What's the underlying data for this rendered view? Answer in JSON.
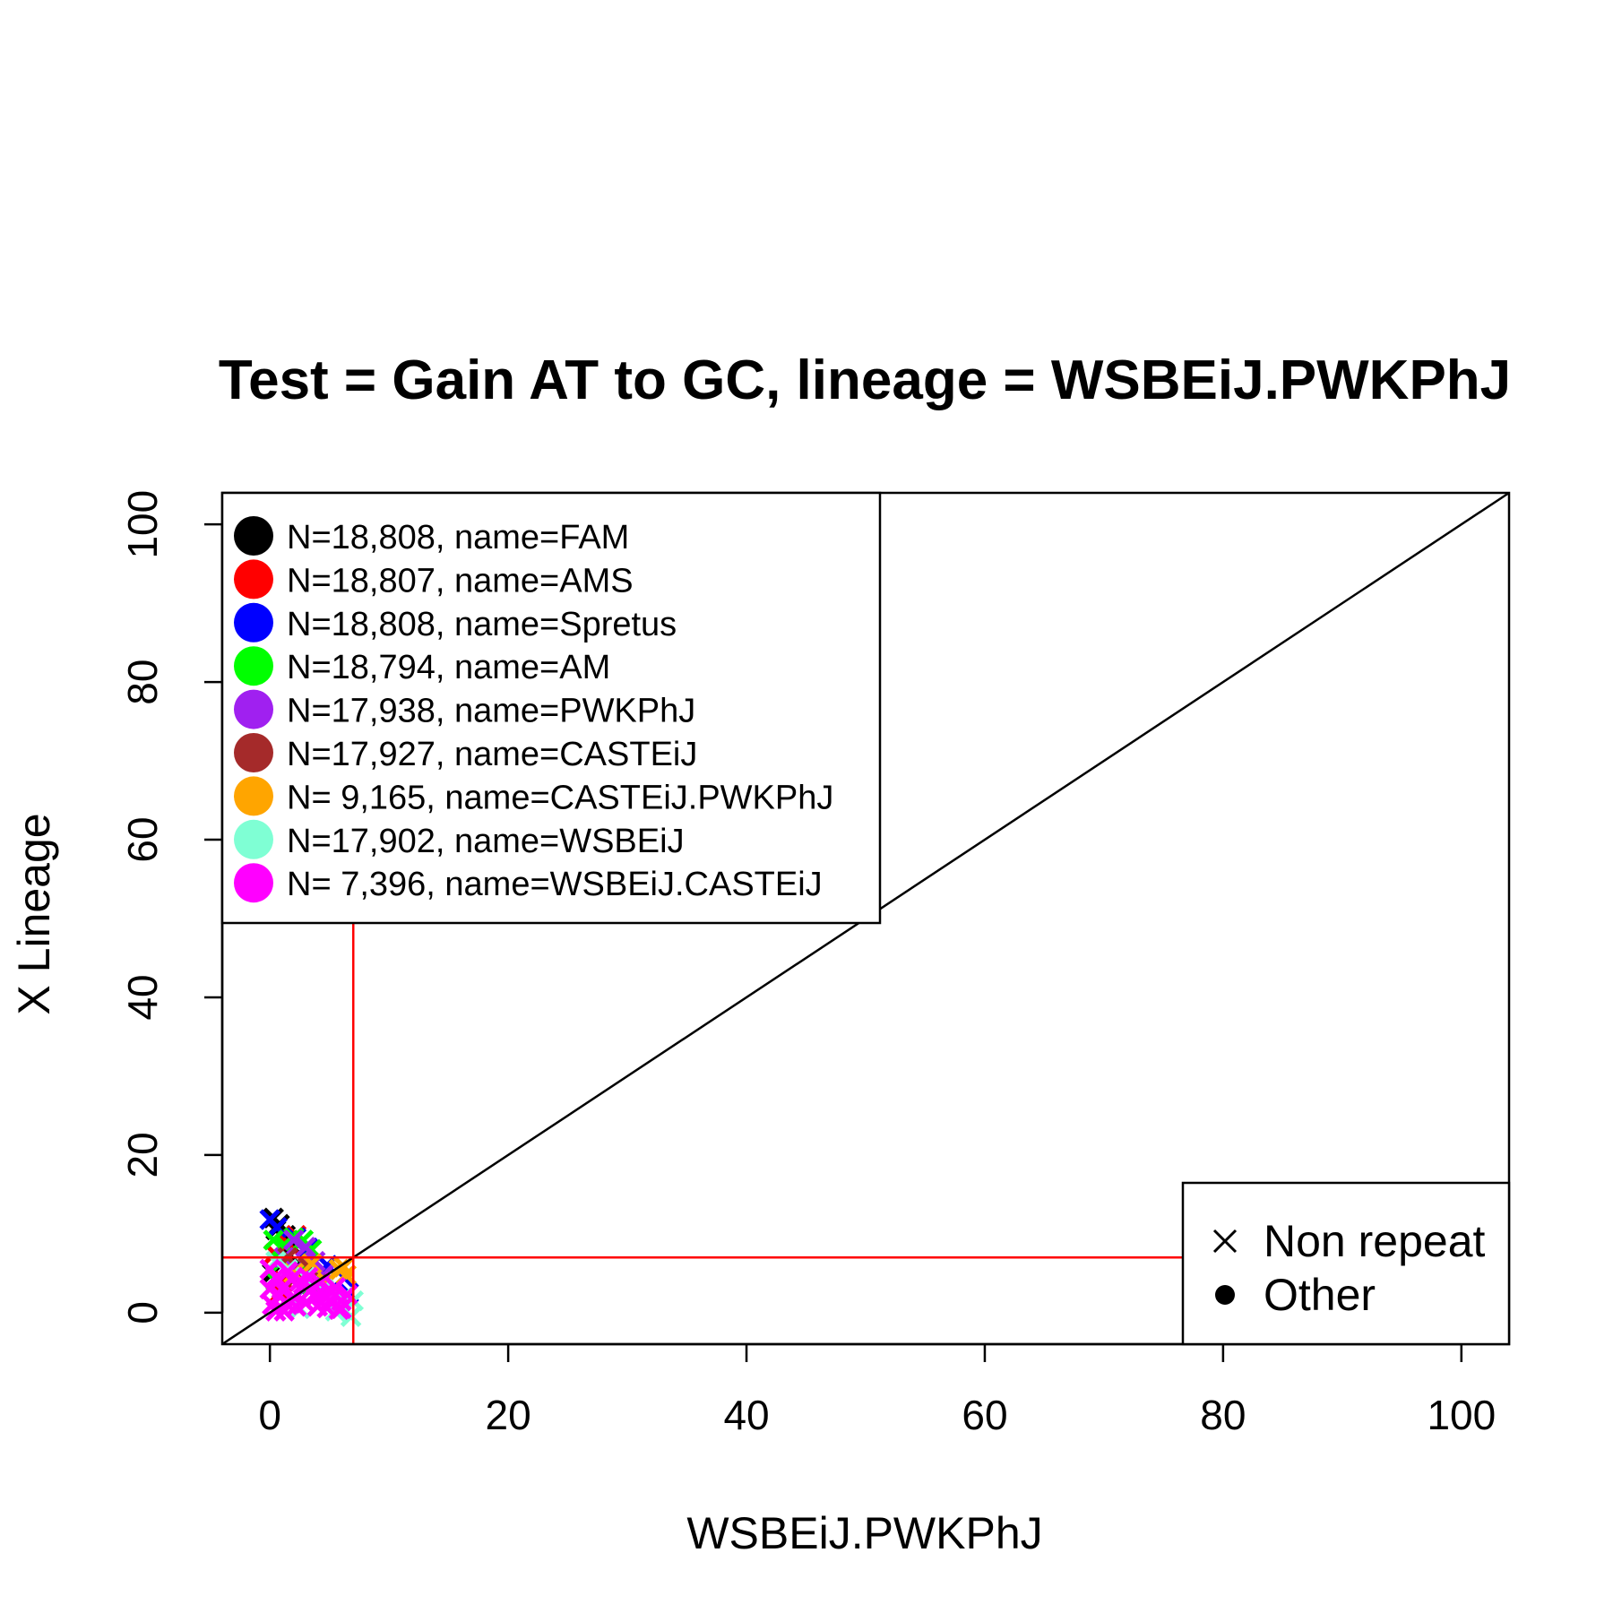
{
  "chart_data": {
    "type": "scatter",
    "title": "Test = Gain AT to GC, lineage = WSBEiJ.PWKPhJ",
    "xlabel": "WSBEiJ.PWKPhJ",
    "ylabel": "X Lineage",
    "xlim": [
      -4,
      104
    ],
    "ylim": [
      -4,
      104
    ],
    "x_ticks": [
      0,
      20,
      40,
      60,
      80,
      100
    ],
    "y_ticks": [
      0,
      20,
      40,
      60,
      80,
      100
    ],
    "grid": false,
    "reference_lines": {
      "diagonal": {
        "slope": 1,
        "intercept": 0,
        "color": "#000000"
      },
      "vertical": {
        "x": 7,
        "color": "#ff0000"
      },
      "horizontal": {
        "y": 7,
        "color": "#ff0000"
      }
    },
    "legend_placement": "top-left",
    "legend": [
      {
        "label": "N=18,808, name=FAM",
        "color": "#000000"
      },
      {
        "label": "N=18,807, name=AMS",
        "color": "#ff0000"
      },
      {
        "label": "N=18,808, name=Spretus",
        "color": "#0000ff"
      },
      {
        "label": "N=18,794, name=AM",
        "color": "#00ff00"
      },
      {
        "label": "N=17,938, name=PWKPhJ",
        "color": "#a020f0"
      },
      {
        "label": "N=17,927, name=CASTEiJ",
        "color": "#a52a2a"
      },
      {
        "label": "N= 9,165, name=CASTEiJ.PWKPhJ",
        "color": "#ffa500"
      },
      {
        "label": "N=17,902, name=WSBEiJ",
        "color": "#7fffd4"
      },
      {
        "label": "N= 7,396, name=WSBEiJ.CASTEiJ",
        "color": "#ff00ff"
      }
    ],
    "marker_legend_placement": "bottom-right",
    "marker_legend": [
      {
        "label": "Non repeat",
        "marker": "x"
      },
      {
        "label": "Other",
        "marker": "dot"
      }
    ],
    "series": [
      {
        "color": "#000000",
        "points": [
          [
            0.3,
            12
          ],
          [
            0.8,
            11.2
          ],
          [
            1.3,
            9.8
          ],
          [
            0.5,
            10.5
          ],
          [
            1.8,
            8.5
          ],
          [
            2.5,
            6
          ],
          [
            0.2,
            5
          ],
          [
            1,
            3
          ]
        ]
      },
      {
        "color": "#ff0000",
        "points": [
          [
            2.2,
            9.8
          ],
          [
            1.5,
            8.8
          ],
          [
            0.4,
            7.5
          ],
          [
            3,
            6.5
          ],
          [
            1.2,
            4
          ],
          [
            0.8,
            2.5
          ]
        ]
      },
      {
        "color": "#0000ff",
        "points": [
          [
            0,
            11.8
          ],
          [
            0.6,
            10.8
          ],
          [
            2.2,
            9.5
          ],
          [
            3.2,
            8.2
          ],
          [
            4.8,
            6
          ],
          [
            6.2,
            4.5
          ],
          [
            6.6,
            2.5
          ],
          [
            5.8,
            1.2
          ]
        ]
      },
      {
        "color": "#00ff00",
        "points": [
          [
            0.3,
            9.2
          ],
          [
            1.2,
            8.6
          ],
          [
            2,
            9.5
          ],
          [
            2.8,
            9.2
          ],
          [
            3.5,
            8
          ],
          [
            1,
            6.5
          ],
          [
            2.5,
            5
          ],
          [
            0.5,
            4
          ],
          [
            3.5,
            3.5
          ]
        ]
      },
      {
        "color": "#a020f0",
        "points": [
          [
            2,
            9.2
          ],
          [
            3,
            8.3
          ],
          [
            1.2,
            7
          ],
          [
            3.8,
            6.5
          ],
          [
            2.2,
            5.5
          ],
          [
            4.5,
            4.8
          ],
          [
            3,
            3.2
          ]
        ]
      },
      {
        "color": "#a52a2a",
        "points": [
          [
            1.5,
            7
          ],
          [
            3.2,
            5.8
          ],
          [
            2,
            4.2
          ],
          [
            4,
            3.6
          ]
        ]
      },
      {
        "color": "#ffa500",
        "points": [
          [
            6.2,
            5.8
          ],
          [
            6.4,
            4.8
          ],
          [
            5.8,
            5.5
          ],
          [
            3.5,
            6.2
          ],
          [
            2,
            5
          ],
          [
            4.8,
            3.8
          ]
        ]
      },
      {
        "color": "#7fffd4",
        "points": [
          [
            0.5,
            6.5
          ],
          [
            1.5,
            5.5
          ],
          [
            3,
            4.5
          ],
          [
            4.5,
            3
          ],
          [
            6.2,
            2
          ],
          [
            6.8,
            -0.5
          ],
          [
            5.5,
            0.2
          ],
          [
            7,
            1.5
          ],
          [
            2.5,
            0.5
          ]
        ]
      },
      {
        "color": "#ff00ff",
        "points": [
          [
            0,
            5.5
          ],
          [
            0.5,
            4.5
          ],
          [
            1,
            3
          ],
          [
            1.5,
            5.2
          ],
          [
            2,
            2
          ],
          [
            2.5,
            4
          ],
          [
            3,
            1.2
          ],
          [
            3.5,
            3
          ],
          [
            4,
            0.8
          ],
          [
            4.5,
            2.3
          ],
          [
            5,
            1.5
          ],
          [
            5.5,
            3.2
          ],
          [
            6,
            0.5
          ],
          [
            6.5,
            2.3
          ],
          [
            0.2,
            1
          ],
          [
            1.2,
            0.2
          ],
          [
            2.8,
            3.6
          ],
          [
            0.8,
            2.2
          ],
          [
            3.8,
            2
          ],
          [
            1.8,
            4.2
          ],
          [
            5.8,
            0.4
          ],
          [
            4.2,
            3.8
          ],
          [
            0,
            3
          ],
          [
            2.2,
            0.8
          ],
          [
            6,
            1.5
          ],
          [
            3.2,
            4.5
          ],
          [
            1.5,
            1
          ],
          [
            4.8,
            0.6
          ],
          [
            0.5,
            0.2
          ],
          [
            5.2,
            2.6
          ]
        ]
      }
    ]
  }
}
